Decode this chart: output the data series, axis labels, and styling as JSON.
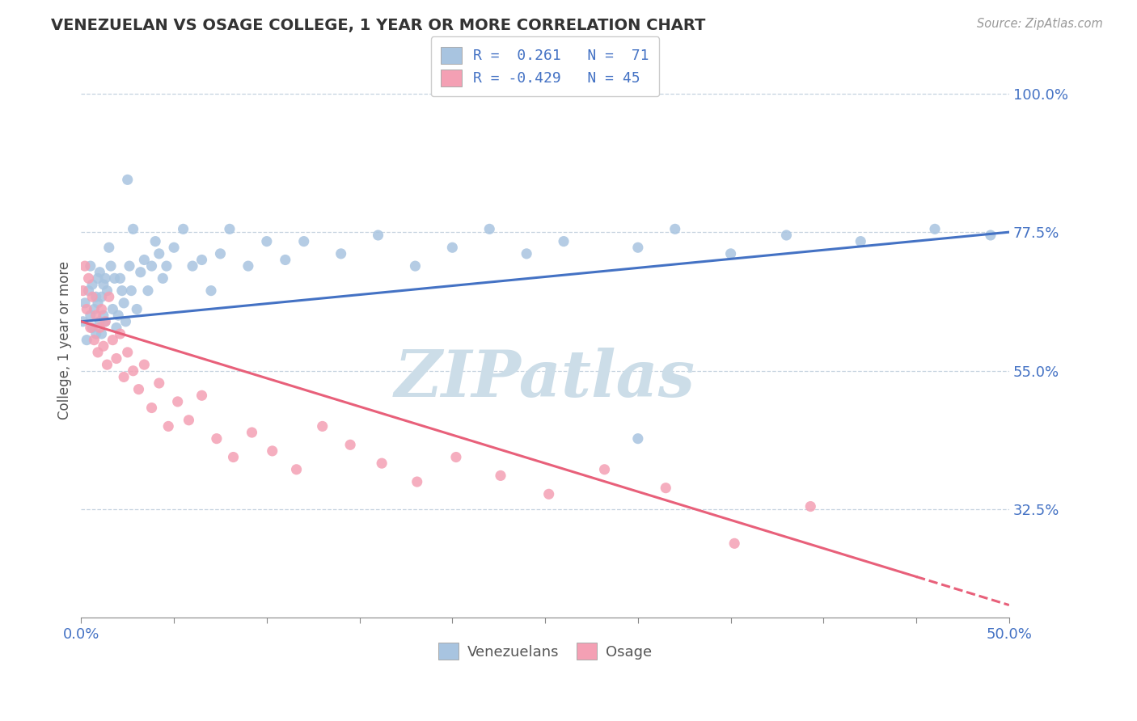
{
  "title": "VENEZUELAN VS OSAGE COLLEGE, 1 YEAR OR MORE CORRELATION CHART",
  "source_text": "Source: ZipAtlas.com",
  "ylabel": "College, 1 year or more",
  "xlim": [
    0.0,
    0.5
  ],
  "ylim": [
    0.15,
    1.05
  ],
  "xtick_positions": [
    0.0,
    0.05,
    0.1,
    0.15,
    0.2,
    0.25,
    0.3,
    0.35,
    0.4,
    0.45,
    0.5
  ],
  "ytick_labels": [
    "32.5%",
    "55.0%",
    "77.5%",
    "100.0%"
  ],
  "ytick_positions": [
    0.325,
    0.55,
    0.775,
    1.0
  ],
  "r_venezuelan": 0.261,
  "n_venezuelan": 71,
  "r_osage": -0.429,
  "n_osage": 45,
  "legend_label_1": "Venezuelans",
  "legend_label_2": "Osage",
  "dot_color_venezuelan": "#a8c4e0",
  "dot_color_osage": "#f4a0b4",
  "line_color_venezuelan": "#4472c4",
  "line_color_osage": "#e8607a",
  "watermark_color": "#ccdde8",
  "background_color": "#ffffff",
  "venezuelan_x": [
    0.001,
    0.002,
    0.003,
    0.004,
    0.005,
    0.005,
    0.006,
    0.006,
    0.007,
    0.008,
    0.008,
    0.009,
    0.009,
    0.01,
    0.01,
    0.011,
    0.011,
    0.012,
    0.012,
    0.013,
    0.013,
    0.014,
    0.015,
    0.016,
    0.017,
    0.018,
    0.019,
    0.02,
    0.021,
    0.022,
    0.023,
    0.024,
    0.025,
    0.026,
    0.027,
    0.028,
    0.03,
    0.032,
    0.034,
    0.036,
    0.038,
    0.04,
    0.042,
    0.044,
    0.046,
    0.05,
    0.055,
    0.06,
    0.065,
    0.07,
    0.075,
    0.08,
    0.09,
    0.1,
    0.11,
    0.12,
    0.14,
    0.16,
    0.18,
    0.2,
    0.22,
    0.24,
    0.26,
    0.3,
    0.32,
    0.35,
    0.38,
    0.42,
    0.46,
    0.49,
    0.3
  ],
  "venezuelan_y": [
    0.63,
    0.66,
    0.6,
    0.68,
    0.64,
    0.72,
    0.62,
    0.69,
    0.65,
    0.67,
    0.61,
    0.66,
    0.7,
    0.63,
    0.71,
    0.61,
    0.67,
    0.64,
    0.69,
    0.7,
    0.63,
    0.68,
    0.75,
    0.72,
    0.65,
    0.7,
    0.62,
    0.64,
    0.7,
    0.68,
    0.66,
    0.63,
    0.86,
    0.72,
    0.68,
    0.78,
    0.65,
    0.71,
    0.73,
    0.68,
    0.72,
    0.76,
    0.74,
    0.7,
    0.72,
    0.75,
    0.78,
    0.72,
    0.73,
    0.68,
    0.74,
    0.78,
    0.72,
    0.76,
    0.73,
    0.76,
    0.74,
    0.77,
    0.72,
    0.75,
    0.78,
    0.74,
    0.76,
    0.75,
    0.78,
    0.74,
    0.77,
    0.76,
    0.78,
    0.77,
    0.44
  ],
  "osage_x": [
    0.001,
    0.002,
    0.003,
    0.004,
    0.005,
    0.006,
    0.007,
    0.008,
    0.009,
    0.01,
    0.011,
    0.012,
    0.013,
    0.014,
    0.015,
    0.017,
    0.019,
    0.021,
    0.023,
    0.025,
    0.028,
    0.031,
    0.034,
    0.038,
    0.042,
    0.047,
    0.052,
    0.058,
    0.065,
    0.073,
    0.082,
    0.092,
    0.103,
    0.116,
    0.13,
    0.145,
    0.162,
    0.181,
    0.202,
    0.226,
    0.252,
    0.282,
    0.315,
    0.352,
    0.393
  ],
  "osage_y": [
    0.68,
    0.72,
    0.65,
    0.7,
    0.62,
    0.67,
    0.6,
    0.64,
    0.58,
    0.62,
    0.65,
    0.59,
    0.63,
    0.56,
    0.67,
    0.6,
    0.57,
    0.61,
    0.54,
    0.58,
    0.55,
    0.52,
    0.56,
    0.49,
    0.53,
    0.46,
    0.5,
    0.47,
    0.51,
    0.44,
    0.41,
    0.45,
    0.42,
    0.39,
    0.46,
    0.43,
    0.4,
    0.37,
    0.41,
    0.38,
    0.35,
    0.39,
    0.36,
    0.27,
    0.33
  ],
  "vline_x0": 0.0,
  "vline_x1": 0.5,
  "vline_y0": 0.63,
  "vline_y1": 0.775,
  "oline_x0": 0.0,
  "oline_x1": 0.5,
  "oline_y0": 0.63,
  "oline_y1": 0.17
}
